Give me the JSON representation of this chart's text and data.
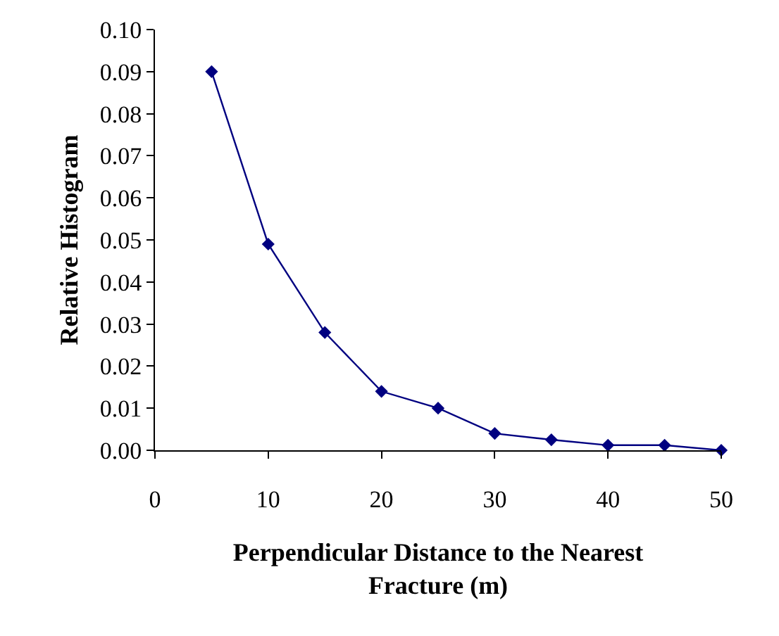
{
  "chart_data": {
    "type": "line",
    "xlabel": "Perpendicular Distance to the Nearest Fracture (m)",
    "ylabel": "Relative Histogram",
    "x": [
      5,
      10,
      15,
      20,
      25,
      30,
      35,
      40,
      45,
      50
    ],
    "series": [
      {
        "color": "#000080",
        "values": [
          0.09,
          0.049,
          0.028,
          0.014,
          0.01,
          0.004,
          0.0025,
          0.0012,
          0.0012,
          0.0
        ]
      }
    ],
    "xlim": [
      0,
      50
    ],
    "xticks": [
      0,
      10,
      20,
      30,
      40,
      50
    ],
    "ylim": [
      0,
      0.1
    ],
    "yticks": [
      {
        "value": 0,
        "label": "0.00"
      },
      {
        "value": 0.01,
        "label": "0.01"
      },
      {
        "value": 0.02,
        "label": "0.02"
      },
      {
        "value": 0.03,
        "label": "0.03"
      },
      {
        "value": 0.04,
        "label": "0.04"
      },
      {
        "value": 0.05,
        "label": "0.05"
      },
      {
        "value": 0.06,
        "label": "0.06"
      },
      {
        "value": 0.07,
        "label": "0.07"
      },
      {
        "value": 0.08,
        "label": "0.08"
      },
      {
        "value": 0.09,
        "label": "0.09"
      },
      {
        "value": 0.1,
        "label": "0.10"
      }
    ],
    "marker": "diamond",
    "line_style": "solid"
  }
}
